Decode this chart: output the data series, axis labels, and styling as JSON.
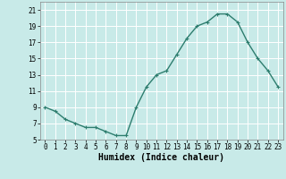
{
  "x_data": [
    0,
    1,
    2,
    3,
    4,
    5,
    6,
    7,
    8,
    9,
    10,
    11,
    12,
    13,
    14,
    15,
    16,
    17,
    18,
    19,
    20,
    21,
    22,
    23
  ],
  "y_data": [
    9,
    8.5,
    7.5,
    7,
    6.5,
    6.5,
    6,
    5.5,
    5.5,
    9,
    11.5,
    13,
    13.5,
    15.5,
    17.5,
    19,
    19.5,
    20.5,
    20.5,
    19.5,
    17,
    15,
    13.5,
    11.5
  ],
  "line_color": "#2d7d6e",
  "marker": "+",
  "bg_color": "#c8eae8",
  "grid_color": "#ffffff",
  "xlabel": "Humidex (Indice chaleur)",
  "xlabel_fontsize": 7,
  "ylim": [
    5,
    22
  ],
  "xlim": [
    -0.5,
    23.5
  ],
  "yticks": [
    5,
    7,
    9,
    11,
    13,
    15,
    17,
    19,
    21
  ],
  "xticks": [
    0,
    1,
    2,
    3,
    4,
    5,
    6,
    7,
    8,
    9,
    10,
    11,
    12,
    13,
    14,
    15,
    16,
    17,
    18,
    19,
    20,
    21,
    22,
    23
  ],
  "tick_fontsize": 5.5,
  "linewidth": 1.0,
  "markersize": 3,
  "markeredgewidth": 0.8
}
